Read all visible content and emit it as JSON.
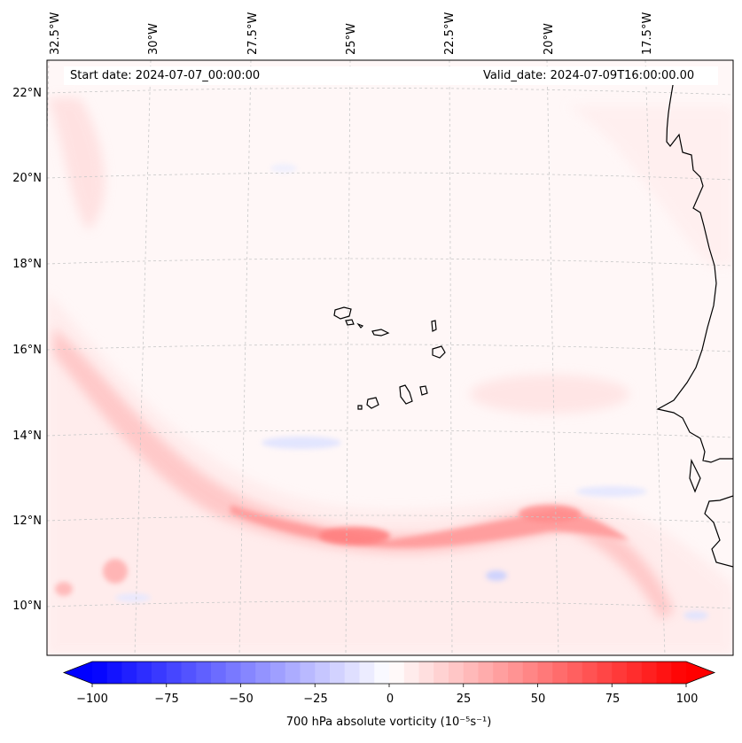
{
  "map": {
    "start_date": "Start date: 2024-07-07_00:00:00",
    "valid_date": "Valid_date: 2024-07-09T16:00:00.00",
    "lon_labels": [
      "32.5°W",
      "30°W",
      "27.5°W",
      "25°W",
      "22.5°W",
      "20°W",
      "17.5°W"
    ],
    "lat_labels": [
      "22°N",
      "20°N",
      "18°N",
      "16°N",
      "14°N",
      "12°N",
      "10°N"
    ],
    "colors": {
      "land_outline": "#000000",
      "grid": "#c8c8c8",
      "positive": "#ff0000",
      "negative": "#0000ff",
      "neutral": "#ffffff"
    }
  },
  "colorbar": {
    "label": "700 hPa absolute vorticity (10⁻⁵s⁻¹)",
    "ticks": [
      "−100",
      "−75",
      "−50",
      "−25",
      "0",
      "25",
      "50",
      "75",
      "100"
    ],
    "min": -100,
    "max": 100,
    "levels": 40
  }
}
